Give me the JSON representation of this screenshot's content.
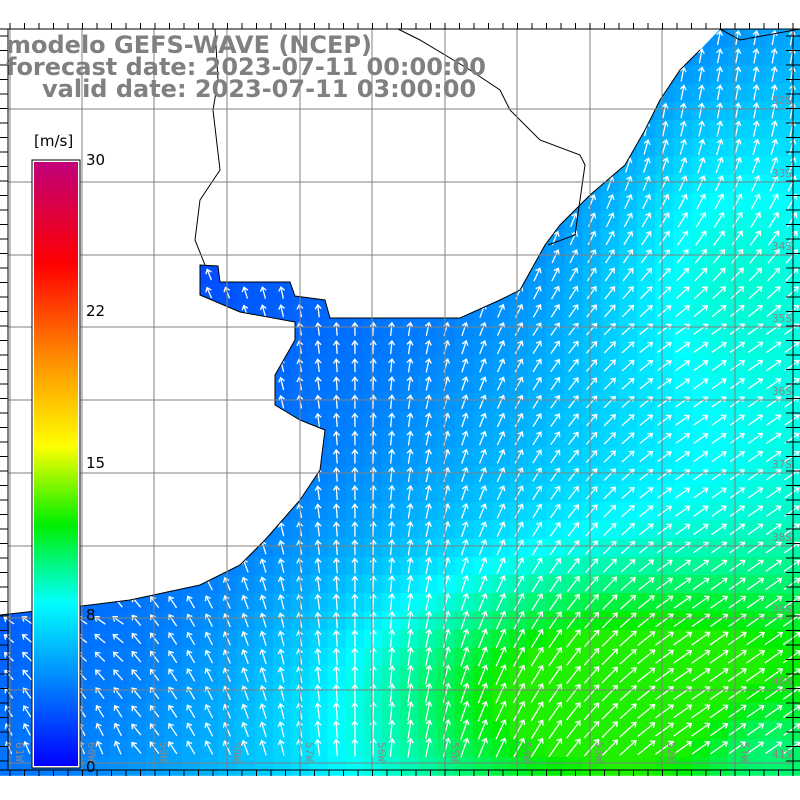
{
  "title": {
    "line1": "modelo GEFS-WAVE (NCEP)",
    "line2": "forecast date: 2023-07-11 00:00:00",
    "line3": "valid date: 2023-07-11 03:00:00"
  },
  "colorbar": {
    "unit": "[m/s]",
    "ticks": [
      "30",
      "22",
      "15",
      "8",
      "0"
    ],
    "colors": [
      "#c0007a",
      "#ff0000",
      "#ff9000",
      "#ffff00",
      "#00ee00",
      "#00ffff",
      "#0000ff"
    ]
  },
  "grid": {
    "lat_labels": [
      "32S",
      "33S",
      "34S",
      "35S",
      "36S",
      "37S",
      "38S",
      "39S",
      "40S",
      "41S"
    ],
    "lon_labels": [
      "61W",
      "60W",
      "59W",
      "58W",
      "57W",
      "56W",
      "55W",
      "54W",
      "53W",
      "52W",
      "51W"
    ]
  },
  "colors": {
    "land": "#ffffff",
    "grid": "#808080",
    "coast": "#000000",
    "arrow": "#ffffff"
  }
}
